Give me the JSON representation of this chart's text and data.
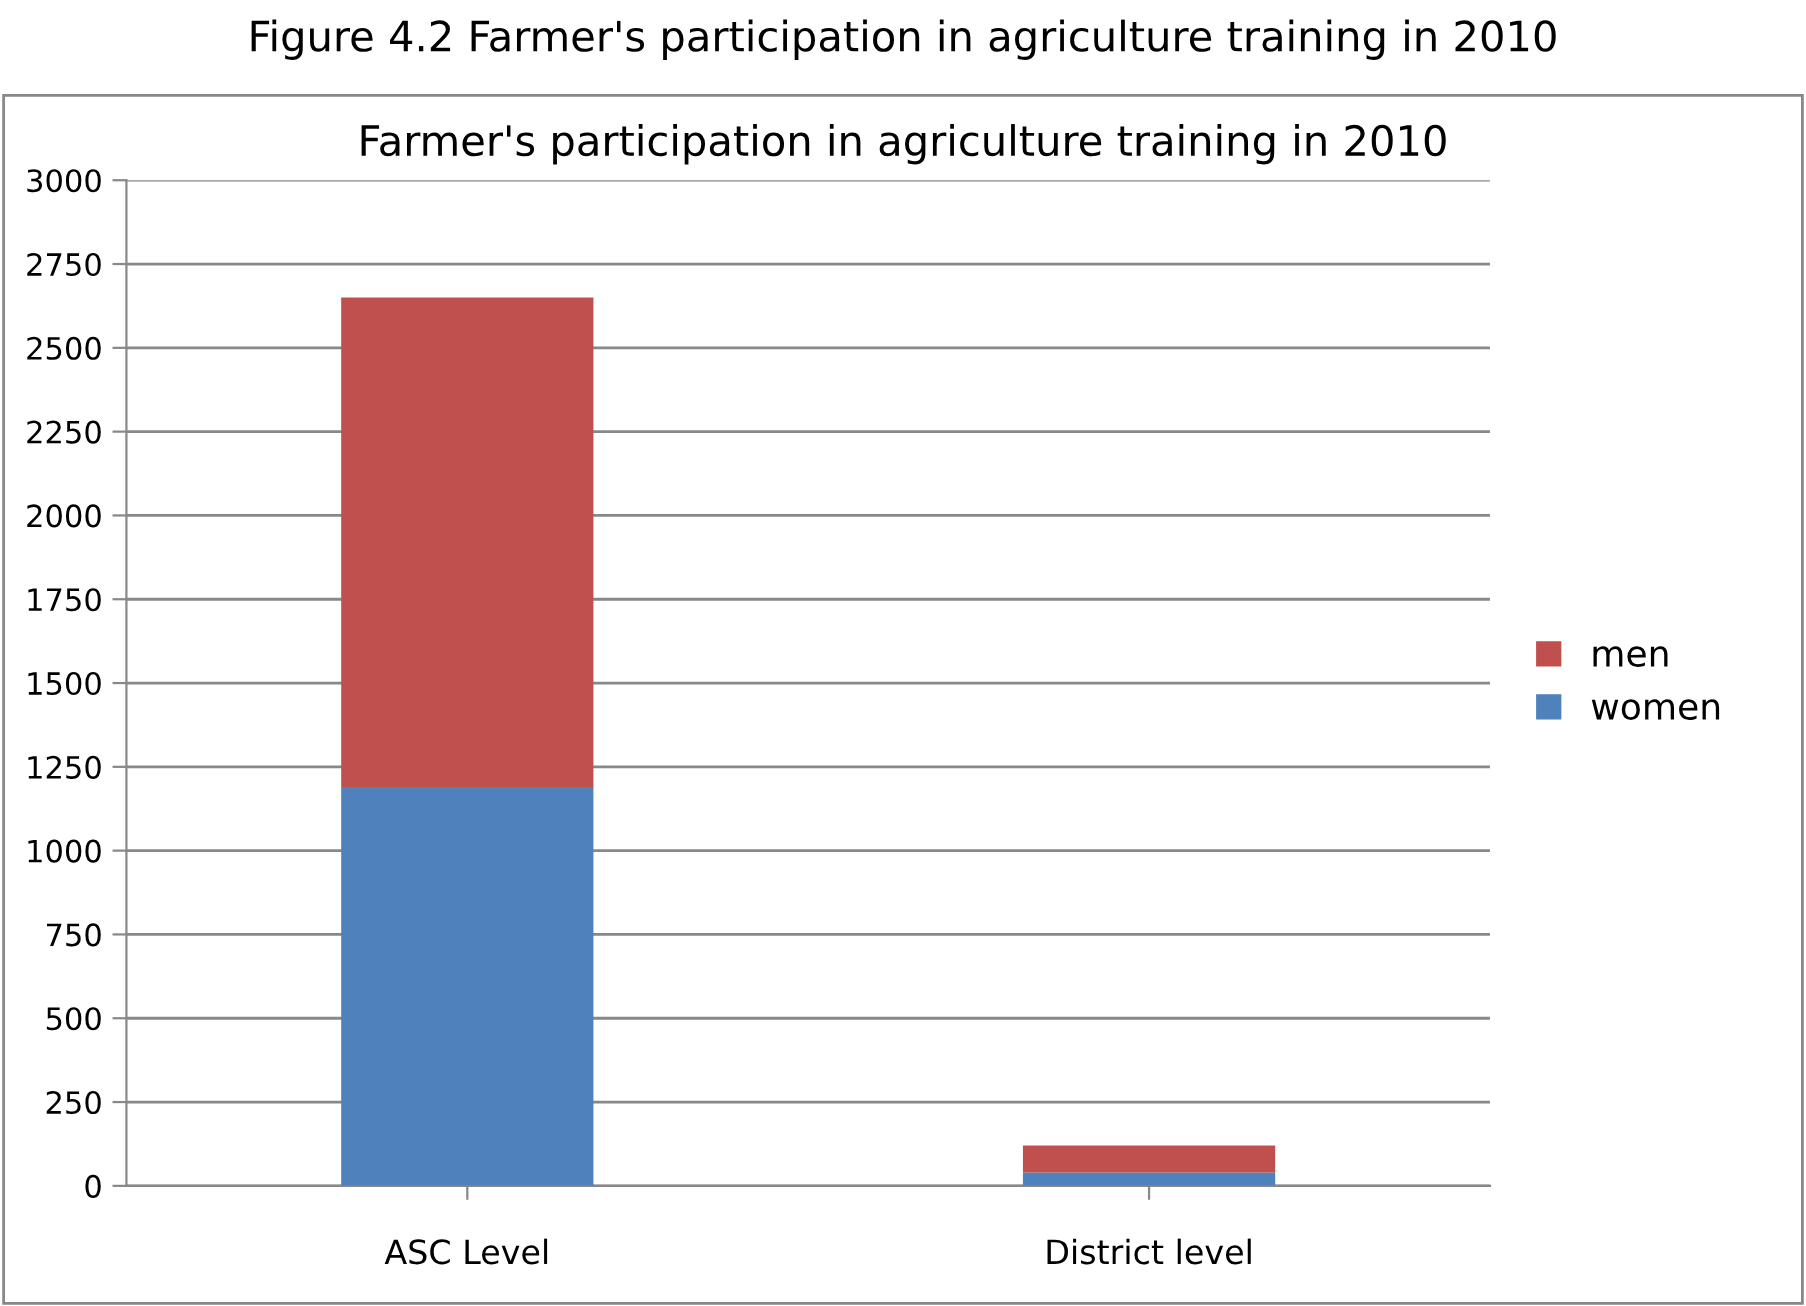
{
  "chart_data": {
    "type": "bar",
    "title": "Farmer's participation in agriculture training in 2010",
    "annotations": [
      "Figure 4.2 Farmer's participation in agriculture training in 2010"
    ],
    "categories": [
      "ASC Level",
      "District level"
    ],
    "stacked": true,
    "series": [
      {
        "name": "women",
        "color": "#4f81bd",
        "values": [
          1190,
          40
        ]
      },
      {
        "name": "men",
        "color": "#c0504d",
        "values": [
          1460,
          80
        ]
      }
    ],
    "ylim": [
      0,
      3000
    ],
    "yticks": [
      0,
      250,
      500,
      750,
      1000,
      1250,
      1500,
      1750,
      2000,
      2250,
      2500,
      2750,
      3000
    ],
    "grid": "y",
    "legend": "right"
  }
}
